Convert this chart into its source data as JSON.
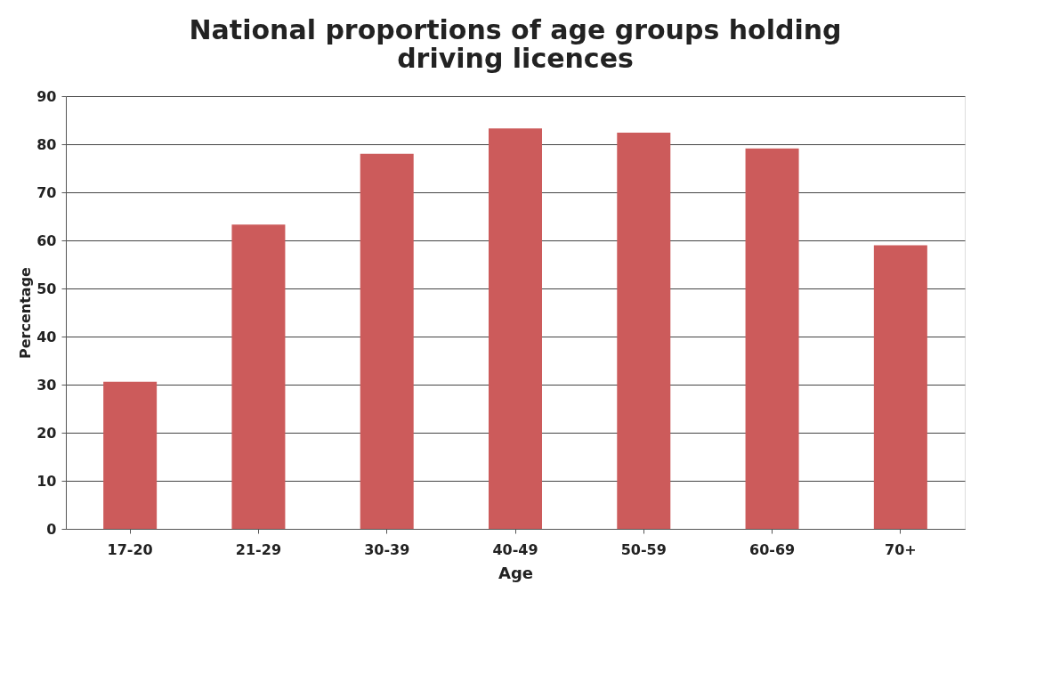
{
  "chart_data": {
    "type": "bar",
    "title": "National proportions of age groups holding driving licences",
    "xlabel": "Age",
    "ylabel": "Percentage",
    "categories": [
      "17-20",
      "21-29",
      "30-39",
      "40-49",
      "50-59",
      "60-69",
      "70+"
    ],
    "values": [
      30.6,
      63.3,
      78,
      83.3,
      82.4,
      79.1,
      59
    ],
    "color": "#cc5b5b",
    "ylim": [
      0,
      90
    ],
    "yticks": [
      0,
      10,
      20,
      30,
      40,
      50,
      60,
      70,
      80,
      90
    ],
    "grid": "y"
  }
}
